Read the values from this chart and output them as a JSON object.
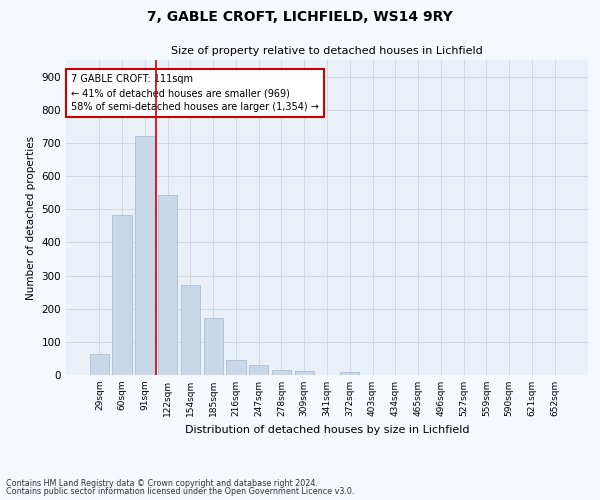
{
  "title1": "7, GABLE CROFT, LICHFIELD, WS14 9RY",
  "title2": "Size of property relative to detached houses in Lichfield",
  "xlabel": "Distribution of detached houses by size in Lichfield",
  "ylabel": "Number of detached properties",
  "categories": [
    "29sqm",
    "60sqm",
    "91sqm",
    "122sqm",
    "154sqm",
    "185sqm",
    "216sqm",
    "247sqm",
    "278sqm",
    "309sqm",
    "341sqm",
    "372sqm",
    "403sqm",
    "434sqm",
    "465sqm",
    "496sqm",
    "527sqm",
    "559sqm",
    "590sqm",
    "621sqm",
    "652sqm"
  ],
  "values": [
    62,
    482,
    720,
    543,
    270,
    172,
    44,
    30,
    14,
    12,
    0,
    8,
    0,
    0,
    0,
    0,
    0,
    0,
    0,
    0,
    0
  ],
  "bar_color": "#c9d8e8",
  "bar_edge_color": "#a0b8d0",
  "grid_color": "#d0d8e8",
  "bg_color": "#eaf0f8",
  "fig_bg_color": "#f5f8fc",
  "vline_color": "#cc0000",
  "vline_x_index": 2.5,
  "annotation_text": "7 GABLE CROFT: 111sqm\n← 41% of detached houses are smaller (969)\n58% of semi-detached houses are larger (1,354) →",
  "annotation_box_color": "#ffffff",
  "annotation_box_edge": "#cc0000",
  "ylim": [
    0,
    950
  ],
  "yticks": [
    0,
    100,
    200,
    300,
    400,
    500,
    600,
    700,
    800,
    900
  ],
  "footnote1": "Contains HM Land Registry data © Crown copyright and database right 2024.",
  "footnote2": "Contains public sector information licensed under the Open Government Licence v3.0."
}
